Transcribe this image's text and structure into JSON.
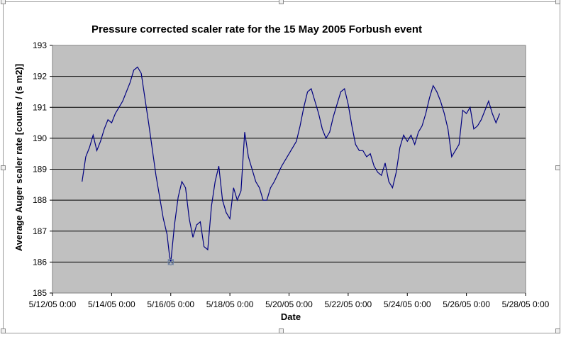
{
  "chart_data": {
    "type": "line",
    "title": "Pressure corrected scaler rate for the 15 May 2005 Forbush event",
    "xlabel": "Date",
    "ylabel": "Average Auger scaler rate [counts / (s m2)]",
    "x_ticks": [
      "5/12/05 0:00",
      "5/14/05 0:00",
      "5/16/05 0:00",
      "5/18/05 0:00",
      "5/20/05 0:00",
      "5/22/05 0:00",
      "5/24/05 0:00",
      "5/26/05 0:00",
      "5/28/05 0:00"
    ],
    "y_ticks": [
      "185",
      "186",
      "187",
      "188",
      "189",
      "190",
      "191",
      "192",
      "193"
    ],
    "xlim": [
      "2005-05-12 00:00",
      "2005-05-28 00:00"
    ],
    "ylim": [
      185,
      193
    ],
    "grid": "horizontal",
    "plot_background": "#c0c0c0",
    "line_color": "#000080",
    "series": [
      {
        "x": [
          "2005-05-13 00:00",
          "2005-05-13 03:00",
          "2005-05-13 06:00",
          "2005-05-13 09:00",
          "2005-05-13 12:00",
          "2005-05-13 15:00",
          "2005-05-13 18:00",
          "2005-05-13 21:00",
          "2005-05-14 00:00",
          "2005-05-14 03:00",
          "2005-05-14 06:00",
          "2005-05-14 09:00",
          "2005-05-14 12:00",
          "2005-05-14 15:00",
          "2005-05-14 18:00",
          "2005-05-14 21:00",
          "2005-05-15 00:00",
          "2005-05-15 06:00",
          "2005-05-15 12:00",
          "2005-05-15 18:00",
          "2005-05-15 21:00",
          "2005-05-15 23:00",
          "2005-05-16 00:00",
          "2005-05-16 03:00",
          "2005-05-16 06:00",
          "2005-05-16 09:00",
          "2005-05-16 12:00",
          "2005-05-16 15:00",
          "2005-05-16 18:00",
          "2005-05-16 21:00",
          "2005-05-17 00:00",
          "2005-05-17 03:00",
          "2005-05-17 06:00",
          "2005-05-17 09:00",
          "2005-05-17 12:00",
          "2005-05-17 15:00",
          "2005-05-17 18:00",
          "2005-05-17 21:00",
          "2005-05-18 00:00",
          "2005-05-18 03:00",
          "2005-05-18 06:00",
          "2005-05-18 09:00",
          "2005-05-18 12:00",
          "2005-05-18 15:00",
          "2005-05-18 18:00",
          "2005-05-18 21:00",
          "2005-05-19 00:00",
          "2005-05-19 03:00",
          "2005-05-19 06:00",
          "2005-05-19 09:00",
          "2005-05-19 12:00",
          "2005-05-19 18:00",
          "2005-05-20 00:00",
          "2005-05-20 06:00",
          "2005-05-20 09:00",
          "2005-05-20 12:00",
          "2005-05-20 15:00",
          "2005-05-20 18:00",
          "2005-05-20 21:00",
          "2005-05-21 00:00",
          "2005-05-21 03:00",
          "2005-05-21 06:00",
          "2005-05-21 09:00",
          "2005-05-21 12:00",
          "2005-05-21 15:00",
          "2005-05-21 18:00",
          "2005-05-21 21:00",
          "2005-05-22 00:00",
          "2005-05-22 03:00",
          "2005-05-22 06:00",
          "2005-05-22 09:00",
          "2005-05-22 12:00",
          "2005-05-22 15:00",
          "2005-05-22 18:00",
          "2005-05-22 21:00",
          "2005-05-23 00:00",
          "2005-05-23 03:00",
          "2005-05-23 06:00",
          "2005-05-23 09:00",
          "2005-05-23 12:00",
          "2005-05-23 15:00",
          "2005-05-23 18:00",
          "2005-05-23 21:00",
          "2005-05-24 00:00",
          "2005-05-24 03:00",
          "2005-05-24 06:00",
          "2005-05-24 09:00",
          "2005-05-24 12:00",
          "2005-05-24 15:00",
          "2005-05-24 18:00",
          "2005-05-24 21:00",
          "2005-05-25 00:00",
          "2005-05-25 03:00",
          "2005-05-25 06:00",
          "2005-05-25 09:00",
          "2005-05-25 12:00",
          "2005-05-25 15:00",
          "2005-05-25 18:00",
          "2005-05-25 21:00",
          "2005-05-26 00:00",
          "2005-05-26 03:00",
          "2005-05-26 06:00",
          "2005-05-26 09:00",
          "2005-05-26 12:00",
          "2005-05-26 15:00",
          "2005-05-26 18:00",
          "2005-05-26 21:00",
          "2005-05-27 00:00",
          "2005-05-27 03:00"
        ],
        "y": [
          188.6,
          189.4,
          189.7,
          190.1,
          189.6,
          189.9,
          190.3,
          190.6,
          190.5,
          190.8,
          191.0,
          191.2,
          191.5,
          191.8,
          192.2,
          192.3,
          192.1,
          190.5,
          188.8,
          187.4,
          186.9,
          186.2,
          186.0,
          187.2,
          188.1,
          188.6,
          188.4,
          187.4,
          186.8,
          187.2,
          187.3,
          186.5,
          186.4,
          187.8,
          188.6,
          189.1,
          188.0,
          187.6,
          187.4,
          188.4,
          188.0,
          188.3,
          190.2,
          189.4,
          189.0,
          188.6,
          188.4,
          188.0,
          188.0,
          188.4,
          188.6,
          189.1,
          189.5,
          189.9,
          190.4,
          191.0,
          191.5,
          191.6,
          191.2,
          190.8,
          190.3,
          190.0,
          190.2,
          190.7,
          191.1,
          191.5,
          191.6,
          191.1,
          190.4,
          189.8,
          189.6,
          189.6,
          189.4,
          189.5,
          189.1,
          188.9,
          188.8,
          189.2,
          188.6,
          188.4,
          188.9,
          189.7,
          190.1,
          189.9,
          190.1,
          189.8,
          190.2,
          190.4,
          190.8,
          191.3,
          191.7,
          191.5,
          191.2,
          190.8,
          190.3,
          189.4,
          189.6,
          189.8,
          190.9,
          190.8,
          191.0,
          190.3,
          190.4,
          190.6,
          190.9,
          191.2,
          190.8,
          190.5,
          190.8
        ]
      }
    ]
  }
}
